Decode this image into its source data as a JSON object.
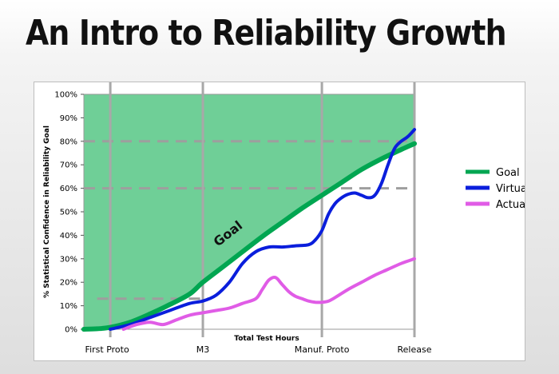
{
  "slide": {
    "title": "An Intro to Reliability Growth"
  },
  "chart_data": {
    "type": "line",
    "ylabel": "% Statistical Confidence in Reliability Goal",
    "xlabel": "Total Test Hours",
    "ylim": [
      0,
      100
    ],
    "y_ticks": [
      "0%",
      "10%",
      "20%",
      "30%",
      "40%",
      "50%",
      "60%",
      "70%",
      "80%",
      "90%",
      "100%"
    ],
    "x_range": [
      0,
      100
    ],
    "milestones": [
      {
        "label": "First Proto",
        "x": 8
      },
      {
        "label": "M3",
        "x": 36
      },
      {
        "label": "Manuf. Proto",
        "x": 72
      },
      {
        "label": "Release",
        "x": 100
      }
    ],
    "dashed_levels": [
      {
        "y": 80,
        "x_start": 0,
        "x_end": 100
      },
      {
        "y": 60,
        "x_start": 0,
        "x_end": 100
      },
      {
        "y": 13,
        "x_start": 4,
        "x_end": 38
      }
    ],
    "annotation": {
      "text": "Goal",
      "x": 42,
      "y": 35
    },
    "legend_position": "right",
    "series": [
      {
        "name": "Goal",
        "color": "#00a651",
        "fill": "#6fcf97",
        "fill_above": true,
        "x": [
          0,
          4,
          8,
          14,
          20,
          26,
          32,
          36,
          42,
          48,
          54,
          60,
          66,
          72,
          78,
          84,
          90,
          96,
          100
        ],
        "y": [
          0,
          0.2,
          0.8,
          3,
          6.5,
          10.5,
          15,
          20,
          26.5,
          33,
          39.5,
          45.5,
          51.5,
          57,
          62.5,
          68,
          72.5,
          76.5,
          79
        ]
      },
      {
        "name": "Virtual",
        "color": "#0a1edc",
        "x": [
          8,
          14,
          20,
          26,
          32,
          36,
          40,
          44,
          48,
          52,
          56,
          60,
          64,
          68,
          70,
          72,
          74,
          76,
          78,
          80,
          82,
          84,
          86,
          88,
          90,
          92,
          94,
          96,
          98,
          100
        ],
        "y": [
          0,
          2,
          5,
          8,
          11,
          12,
          14.5,
          20,
          28,
          33,
          35,
          35,
          35.5,
          36,
          38,
          42,
          49,
          53.5,
          56,
          57.5,
          58,
          57,
          56,
          57,
          62,
          70,
          77,
          80,
          82,
          85
        ]
      },
      {
        "name": "Actual",
        "color": "#e05ce6",
        "x": [
          12,
          16,
          20,
          24,
          28,
          32,
          36,
          40,
          44,
          48,
          52,
          54,
          56,
          58,
          60,
          62,
          64,
          66,
          68,
          70,
          72,
          74,
          76,
          80,
          84,
          88,
          92,
          96,
          100
        ],
        "y": [
          0,
          2,
          3,
          2,
          4,
          6,
          7,
          8,
          9,
          11,
          13,
          17,
          21,
          22,
          19,
          16,
          14,
          13,
          12,
          11.5,
          11.5,
          12,
          13.5,
          17,
          20,
          23,
          25.5,
          28,
          30
        ]
      }
    ]
  }
}
